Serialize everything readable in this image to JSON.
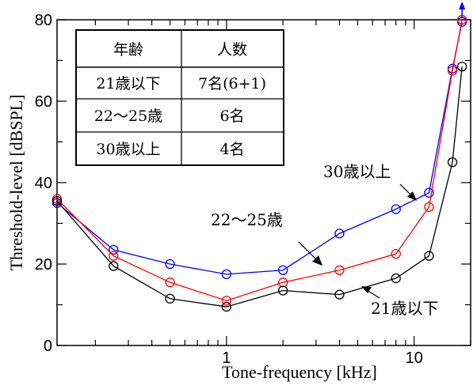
{
  "chart_data": {
    "type": "line",
    "title": "",
    "xlabel": "Tone-frequency [kHz]",
    "ylabel": "Threshold-level [dBSPL]",
    "xscale": "log",
    "xlim": [
      0.125,
      20
    ],
    "ylim": [
      0,
      80
    ],
    "x_ticks": [
      {
        "value": 1,
        "label": "1"
      },
      {
        "value": 10,
        "label": "10"
      }
    ],
    "y_ticks": [
      {
        "value": 0,
        "label": "0"
      },
      {
        "value": 20,
        "label": "20"
      },
      {
        "value": 40,
        "label": "40"
      },
      {
        "value": 60,
        "label": "60"
      },
      {
        "value": 80,
        "label": "80"
      }
    ],
    "grid": false,
    "marker": "open-circle",
    "series": [
      {
        "name": "30歳以上",
        "color": "#0000ff",
        "x": [
          0.125,
          0.25,
          0.5,
          1,
          2,
          4,
          8,
          12,
          16,
          18
        ],
        "y": [
          35,
          23.5,
          20,
          17.5,
          18.5,
          27.5,
          33.5,
          37.5,
          68,
          79.5
        ]
      },
      {
        "name": "22〜25歳",
        "color": "#ff0000",
        "x": [
          0.125,
          0.25,
          0.5,
          1,
          2,
          4,
          8,
          12,
          16,
          18
        ],
        "y": [
          36,
          22,
          15.5,
          11,
          15.5,
          18.5,
          22.5,
          34,
          67.5,
          80
        ]
      },
      {
        "name": "21歳以下",
        "color": "#000000",
        "x": [
          0.125,
          0.25,
          0.5,
          1,
          2,
          4,
          8,
          12,
          16,
          18
        ],
        "y": [
          35.5,
          19.5,
          11.5,
          9.5,
          13.5,
          12.5,
          16.5,
          22,
          45,
          68.5
        ]
      }
    ],
    "annotations": [
      {
        "text": "30歳以上",
        "series": "30歳以上",
        "x": 12,
        "y": 37.5
      },
      {
        "text": "22〜25歳",
        "series": "22〜25歳",
        "x": 4,
        "y": 18.5
      },
      {
        "text": "21歳以下",
        "series": "21歳以下",
        "x": 2,
        "y": 13.5
      }
    ],
    "overflow_marker": {
      "series": "30歳以上",
      "x": 18,
      "direction": "up",
      "color": "#0000ff"
    },
    "table": {
      "headers": [
        "年齢",
        "人数"
      ],
      "rows": [
        [
          "21歳以下",
          "7名(6+1)"
        ],
        [
          "22〜25歳",
          "6名"
        ],
        [
          "30歳以上",
          "4名"
        ]
      ]
    }
  }
}
